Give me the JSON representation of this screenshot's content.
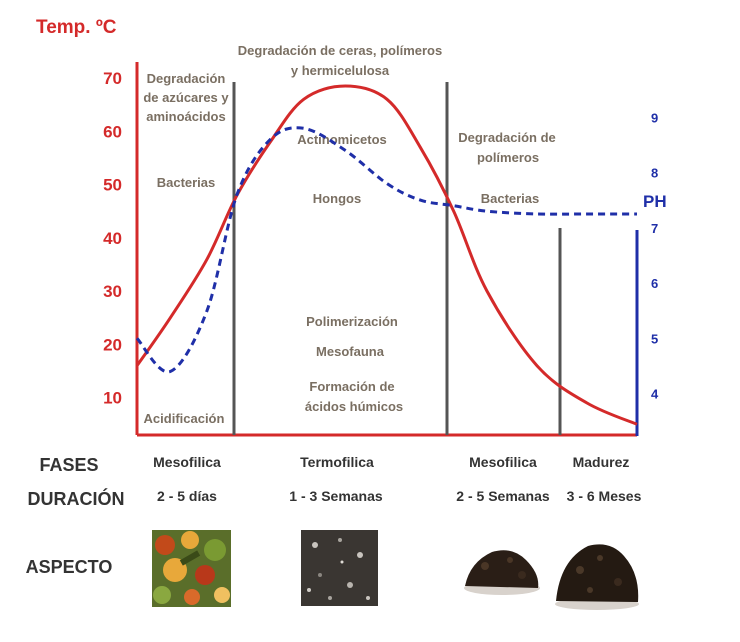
{
  "chart_data": {
    "type": "line",
    "temp_axis_label": "Temp. ºC",
    "ph_axis_label": "PH",
    "temp_ticks": [
      10,
      20,
      30,
      40,
      50,
      60,
      70
    ],
    "ph_ticks": [
      4,
      5,
      6,
      7,
      8,
      9
    ],
    "temp_ylim": [
      3,
      73
    ],
    "ph_ylim": [
      3.25,
      10
    ],
    "x_days": [
      0,
      20,
      42,
      60,
      80,
      100,
      125,
      150,
      170,
      190,
      210,
      240,
      270,
      300
    ],
    "temperature": [
      16,
      25,
      36,
      48,
      58,
      66,
      68.5,
      66,
      57,
      45,
      30,
      16,
      9,
      5
    ],
    "ph": [
      5,
      4.4,
      5.5,
      7.6,
      8.6,
      8.8,
      8.4,
      7.8,
      7.5,
      7.4,
      7.3,
      7.25,
      7.25,
      7.25
    ],
    "xlim": [
      0,
      300
    ],
    "temp_color": "#d42a2a",
    "ph_color": "#1f2fa8",
    "dividers": [
      {
        "color": "#555555"
      },
      {
        "color": "#555555"
      },
      {
        "color": "#555555"
      }
    ],
    "annotations": {
      "phase1_top": [
        "Degradación",
        "de azúcares y",
        "aminoácidos"
      ],
      "phase1_bacteria": "Bacterias",
      "phase1_bottom": "Acidificación",
      "phase2_top": [
        "Degradación de ceras, polímeros",
        "y hermicelulosa"
      ],
      "phase2_actino": "Actinomicetos",
      "phase2_hongos": "Hongos",
      "phase2_bottom": [
        "Polimerización",
        "Mesofauna",
        "Formación de",
        "ácidos húmicos"
      ],
      "phase3_top": [
        "Degradación de",
        "polímeros"
      ],
      "phase3_bacteria": "Bacterias"
    }
  },
  "table": {
    "row_labels": {
      "fases": "FASES",
      "duracion": "DURACIÓN",
      "aspecto": "ASPECTO"
    },
    "fases": [
      "Mesofilica",
      "Termofilica",
      "Mesofilica",
      "Madurez"
    ],
    "duracion": [
      "2 - 5 días",
      "1 - 3 Semanas",
      "2 - 5 Semanas",
      "3 - 6 Meses"
    ]
  },
  "aspect_images": [
    {
      "name": "aspect-image-fresh-waste",
      "colors": [
        "#6a8a2a",
        "#c24a1a",
        "#e8a83a"
      ]
    },
    {
      "name": "aspect-image-thermophilic-compost",
      "colors": [
        "#3a3632",
        "#8a8680",
        "#c8c4be"
      ]
    },
    {
      "name": "aspect-image-mesophilic-compost",
      "colors": [
        "#2a1e16",
        "#4a3626"
      ]
    },
    {
      "name": "aspect-image-mature-compost",
      "colors": [
        "#241a12",
        "#4a3828"
      ]
    }
  ]
}
